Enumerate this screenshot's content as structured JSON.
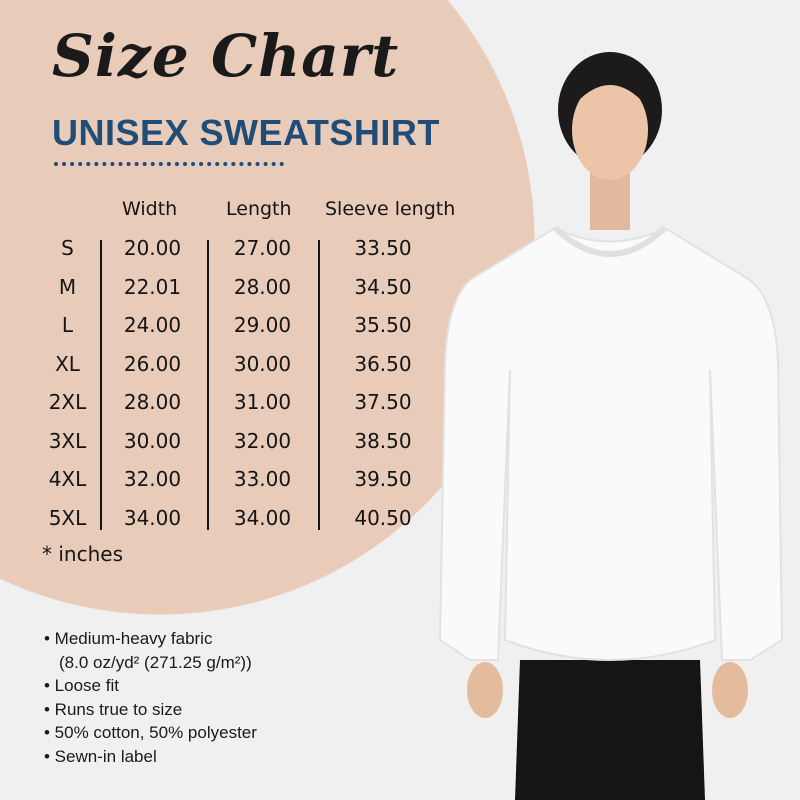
{
  "title": "Size Chart",
  "subtitle": "UNISEX SWEATSHIRT",
  "table": {
    "headers": [
      "Width",
      "Length",
      "Sleeve length"
    ],
    "rows": [
      {
        "size": "S",
        "width": "20.00",
        "length": "27.00",
        "sleeve": "33.50"
      },
      {
        "size": "M",
        "width": "22.01",
        "length": "28.00",
        "sleeve": "34.50"
      },
      {
        "size": "L",
        "width": "24.00",
        "length": "29.00",
        "sleeve": "35.50"
      },
      {
        "size": "XL",
        "width": "26.00",
        "length": "30.00",
        "sleeve": "36.50"
      },
      {
        "size": "2XL",
        "width": "28.00",
        "length": "31.00",
        "sleeve": "37.50"
      },
      {
        "size": "3XL",
        "width": "30.00",
        "length": "32.00",
        "sleeve": "38.50"
      },
      {
        "size": "4XL",
        "width": "32.00",
        "length": "33.00",
        "sleeve": "39.50"
      },
      {
        "size": "5XL",
        "width": "34.00",
        "length": "34.00",
        "sleeve": "40.50"
      }
    ],
    "unit_note": "* inches"
  },
  "features": [
    "• Medium-heavy fabric",
    "(8.0 oz/yd² (271.25 g/m²))",
    "• Loose fit",
    "• Runs true to size",
    "• 50% cotton, 50% polyester",
    "• Sewn-in label"
  ],
  "colors": {
    "background": "#f0f0f0",
    "circle": "#e8cbb9",
    "accent": "#1f4d78",
    "sweatshirt": "#fafafa"
  }
}
